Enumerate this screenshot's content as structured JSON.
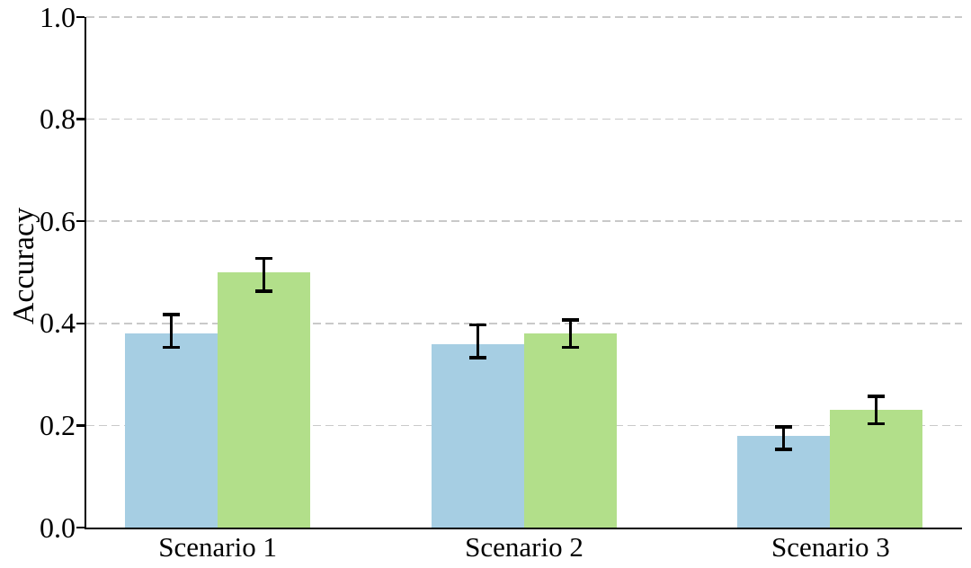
{
  "chart_data": {
    "type": "bar",
    "title": "",
    "xlabel": "",
    "ylabel": "Accuracy",
    "categories": [
      "Scenario 1",
      "Scenario 2",
      "Scenario 3"
    ],
    "series": [
      {
        "name": "blue",
        "color": "#a6cee3",
        "values": [
          0.38,
          0.36,
          0.18
        ],
        "err_minus": [
          0.03,
          0.03,
          0.03
        ],
        "err_plus": [
          0.04,
          0.04,
          0.02
        ]
      },
      {
        "name": "green",
        "color": "#b2df8a",
        "values": [
          0.5,
          0.38,
          0.23
        ],
        "err_minus": [
          0.04,
          0.03,
          0.03
        ],
        "err_plus": [
          0.03,
          0.03,
          0.03
        ]
      }
    ],
    "error_bar_color": "#000000",
    "ylim": [
      0.0,
      1.0
    ],
    "yticks": [
      0.0,
      0.2,
      0.4,
      0.6,
      0.8,
      1.0
    ],
    "ytick_labels": [
      "0.0",
      "0.2",
      "0.4",
      "0.6",
      "0.8",
      "1.0"
    ],
    "grid": {
      "axis": "y",
      "style": "dashed",
      "color": "#c9c9c9",
      "gridline_values": [
        0.2,
        0.4,
        0.6,
        0.8,
        1.0
      ]
    },
    "legend": {
      "visible": false
    },
    "background": "#ffffff",
    "axis_color": "#000000"
  }
}
